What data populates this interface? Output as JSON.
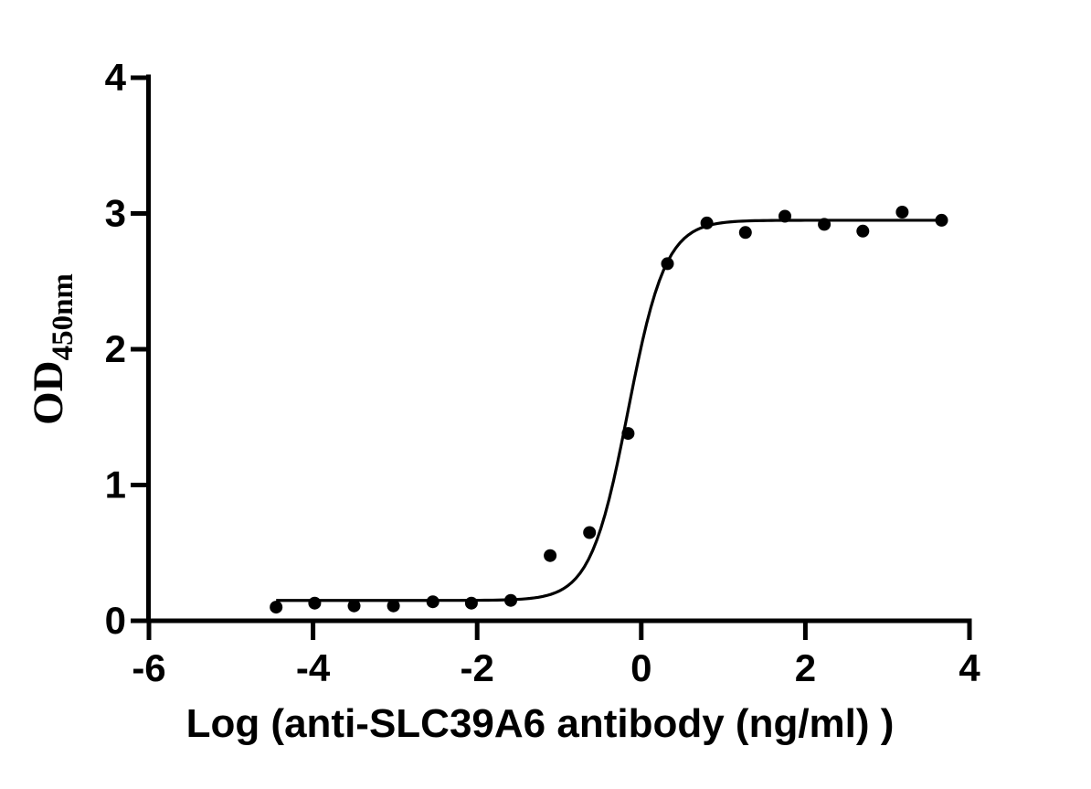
{
  "figure": {
    "background_color": "#ffffff",
    "foreground_color": "#000000"
  },
  "chart_data": {
    "type": "scatter",
    "subtype": "sigmoidal-dose-response-elisa",
    "title": "",
    "xlabel": "Log（anti-SLC39A6 antibody（ng/ml））",
    "ylabel": "OD",
    "ylabel_sub": "450nm",
    "xlim": [
      -6,
      4
    ],
    "ylim": [
      0,
      4
    ],
    "xticks": [
      -6,
      -4,
      -2,
      0,
      2,
      4
    ],
    "yticks": [
      0,
      1,
      2,
      3,
      4
    ],
    "grid": false,
    "legend_position": "none",
    "points": {
      "x": [
        -4.45,
        -3.98,
        -3.5,
        -3.02,
        -2.54,
        -2.07,
        -1.59,
        -1.11,
        -0.63,
        -0.16,
        0.32,
        0.8,
        1.27,
        1.75,
        2.23,
        2.7,
        3.18,
        3.66
      ],
      "y": [
        0.1,
        0.13,
        0.11,
        0.11,
        0.14,
        0.13,
        0.15,
        0.48,
        0.65,
        1.38,
        2.63,
        2.93,
        2.86,
        2.98,
        2.92,
        2.87,
        3.01,
        2.95
      ]
    },
    "fit_curve": {
      "model": "four-parameter-logistic",
      "bottom": 0.15,
      "top": 2.95,
      "logEC50": -0.16,
      "hillSlope": 1.9,
      "x_start": -4.45,
      "x_end": 3.67
    },
    "colors": {
      "points": "#000000",
      "curve": "#000000",
      "axis": "#000000"
    }
  }
}
